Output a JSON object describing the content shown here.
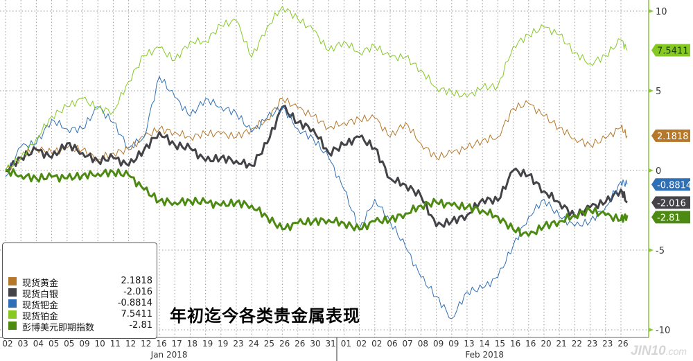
{
  "chart_data": {
    "type": "line",
    "title": "年初迄今各类贵金属表现",
    "xlabel": "",
    "ylabel": "",
    "ylim": [
      -10,
      10
    ],
    "y_ticks": [
      10,
      5,
      0,
      -5,
      -10
    ],
    "grid": true,
    "legend_position": "bottom-left",
    "x_tick_labels": [
      "02",
      "03",
      "04",
      "05",
      "05",
      "09",
      "10",
      "11",
      "12",
      "12",
      "16",
      "17",
      "18",
      "19",
      "19",
      "23",
      "24",
      "25",
      "26",
      "26",
      "30",
      "31",
      "01",
      "02",
      "02",
      "06",
      "07",
      "08",
      "09",
      "09",
      "13",
      "14",
      "15",
      "16",
      "16",
      "20",
      "21",
      "22",
      "23",
      "23",
      "26"
    ],
    "x_month_labels": [
      {
        "label": "Jan 2018",
        "first_tick": 0,
        "last_tick": 21
      },
      {
        "label": "Feb 2018",
        "first_tick": 22,
        "last_tick": 40
      }
    ],
    "series": [
      {
        "name": "现货黄金",
        "color": "#b5772a",
        "width": 1,
        "last": "2.1818",
        "values": [
          0,
          0.8,
          1.4,
          1.1,
          1.4,
          1.3,
          0.7,
          1.1,
          1.3,
          2.1,
          2.6,
          2.4,
          2.1,
          2.3,
          2.3,
          2.1,
          2.6,
          3.2,
          4.5,
          3.9,
          3.4,
          2.7,
          3.0,
          3.2,
          3.3,
          2.1,
          3.0,
          1.7,
          0.8,
          1.1,
          1.4,
          1.9,
          2.1,
          3.9,
          4.2,
          3.4,
          2.7,
          2.0,
          1.6,
          2.0,
          2.7,
          2.1818
        ]
      },
      {
        "name": "现货白银",
        "color": "#444448",
        "width": 3,
        "last": "-2.016",
        "values": [
          0,
          0.8,
          1.3,
          0.8,
          1.7,
          1.1,
          0.6,
          0.8,
          0.3,
          1.3,
          2.4,
          1.6,
          1.4,
          0.6,
          0.8,
          0.6,
          0.3,
          1.7,
          4.0,
          3.0,
          2.6,
          1.1,
          1.6,
          2.1,
          1.4,
          -0.5,
          -0.9,
          -1.6,
          -3.5,
          -3.2,
          -2.8,
          -1.8,
          -1.9,
          0,
          -0.3,
          -1.3,
          -2.0,
          -2.9,
          -2.3,
          -2.0,
          -1.2,
          -2.016
        ]
      },
      {
        "name": "现货钯金",
        "color": "#2f6fb5",
        "width": 1,
        "last": "-0.8814",
        "values": [
          -0.4,
          1.5,
          1.7,
          3.2,
          2.6,
          2.6,
          4.0,
          3.0,
          1.4,
          2.1,
          5.9,
          4.6,
          3.4,
          4.5,
          4.0,
          3.6,
          2.4,
          3.3,
          4.0,
          2.6,
          2.0,
          0.8,
          -1.2,
          -3.7,
          -1.8,
          -3.2,
          -4.8,
          -6.7,
          -7.9,
          -9.3,
          -7.6,
          -7.4,
          -6.7,
          -4.7,
          -2.9,
          -1.8,
          -2.9,
          -3.5,
          -3.2,
          -2.3,
          -0.7,
          -0.8814
        ]
      },
      {
        "name": "现货铂金",
        "color": "#86c925",
        "width": 1,
        "last": "7.5411",
        "values": [
          0,
          0.8,
          2.0,
          3.4,
          4.0,
          4.5,
          3.9,
          3.7,
          5.6,
          7.2,
          7.7,
          6.9,
          8.1,
          8.1,
          9.1,
          9.4,
          7.1,
          9.0,
          10.3,
          9.5,
          8.8,
          7.5,
          8.1,
          7.4,
          7.8,
          7.1,
          7.1,
          6.3,
          5.2,
          4.9,
          4.6,
          5.2,
          5.3,
          7.8,
          8.5,
          9.0,
          8.5,
          7.4,
          6.7,
          7.2,
          8.2,
          7.5411
        ]
      },
      {
        "name": "彭博美元即期指数",
        "color": "#4d8a12",
        "width": 3,
        "last": "-2.81",
        "values": [
          0,
          -0.3,
          -0.5,
          -0.4,
          -0.5,
          -0.3,
          -0.2,
          -0.1,
          -0.3,
          -1.2,
          -1.9,
          -2.0,
          -1.9,
          -2.0,
          -2.2,
          -2.0,
          -2.2,
          -2.9,
          -3.7,
          -3.3,
          -3.2,
          -3.1,
          -3.3,
          -3.7,
          -3.2,
          -3.1,
          -2.7,
          -2.2,
          -2.0,
          -2.2,
          -2.3,
          -2.5,
          -2.9,
          -3.7,
          -4.1,
          -3.5,
          -3.2,
          -2.8,
          -2.5,
          -2.8,
          -3.1,
          -2.81
        ]
      }
    ]
  },
  "legend": [
    {
      "name": "现货黄金",
      "value": "2.1818",
      "color": "#b5772a"
    },
    {
      "name": "现货白银",
      "value": "-2.016",
      "color": "#444448"
    },
    {
      "name": "现货钯金",
      "value": "-0.8814",
      "color": "#2f6fb5"
    },
    {
      "name": "现货铂金",
      "value": "7.5411",
      "color": "#86c925"
    },
    {
      "name": "彭博美元即期指数",
      "value": "-2.81",
      "color": "#4d8a12"
    }
  ],
  "watermark": {
    "main": "JIN10",
    "suffix": ".com"
  },
  "colors": {
    "axis": "#8cc63f",
    "grid": "#9a9a9a",
    "tag_text": "#ffffff"
  }
}
